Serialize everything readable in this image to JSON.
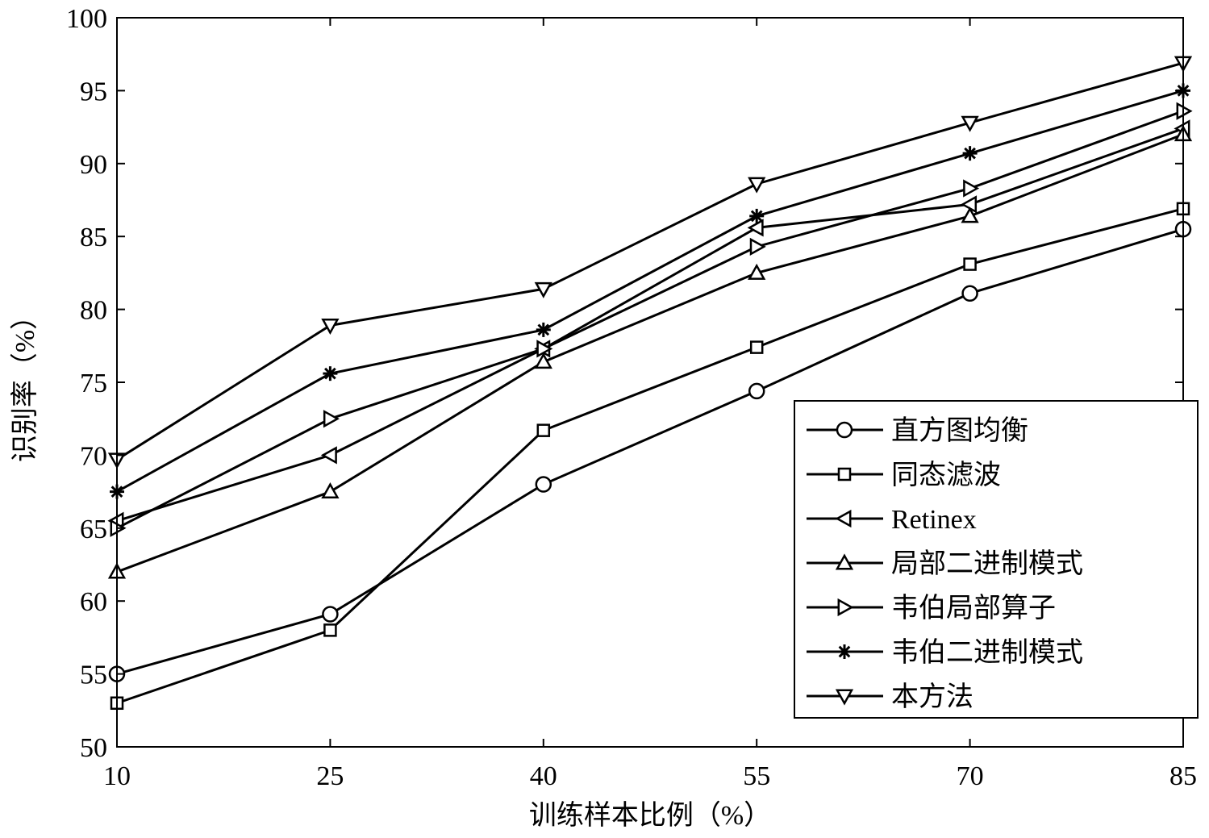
{
  "chart_data": {
    "type": "line",
    "title": "",
    "xlabel": "训练样本比例（%）",
    "ylabel": "识别率（%）",
    "x": [
      10,
      25,
      40,
      55,
      70,
      85
    ],
    "xlim": [
      10,
      85
    ],
    "ylim": [
      50,
      100
    ],
    "xticks": [
      "10",
      "25",
      "40",
      "55",
      "70",
      "85"
    ],
    "yticks": [
      "50",
      "55",
      "60",
      "65",
      "70",
      "75",
      "80",
      "85",
      "90",
      "95",
      "100"
    ],
    "grid": false,
    "legend_position": "bottom-right",
    "series": [
      {
        "name": "直方图均衡",
        "marker": "circle",
        "values": [
          55.0,
          59.1,
          68.0,
          74.4,
          81.1,
          85.5
        ]
      },
      {
        "name": "同态滤波",
        "marker": "square",
        "values": [
          53.0,
          58.0,
          71.7,
          77.4,
          83.1,
          86.9
        ]
      },
      {
        "name": "Retinex",
        "marker": "triangle-left",
        "values": [
          65.5,
          70.0,
          77.3,
          85.6,
          87.2,
          92.4
        ]
      },
      {
        "name": "局部二进制模式",
        "marker": "triangle-up",
        "values": [
          62.0,
          67.5,
          76.4,
          82.5,
          86.4,
          92.0
        ]
      },
      {
        "name": "韦伯局部算子",
        "marker": "triangle-right",
        "values": [
          65.0,
          72.5,
          77.3,
          84.3,
          88.3,
          93.6
        ]
      },
      {
        "name": "韦伯二进制模式",
        "marker": "star",
        "values": [
          67.5,
          75.6,
          78.6,
          86.4,
          90.7,
          95.0
        ]
      },
      {
        "name": "本方法",
        "marker": "triangle-down",
        "values": [
          69.7,
          78.9,
          81.4,
          88.6,
          92.8,
          96.9
        ]
      }
    ]
  }
}
